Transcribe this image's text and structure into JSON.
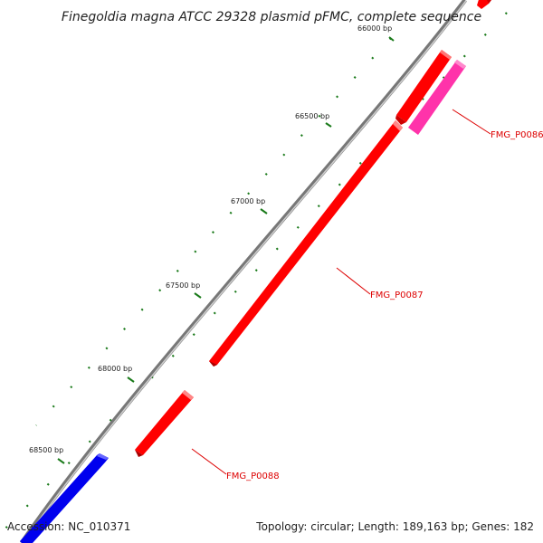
{
  "title": "Finegoldia magna ATCC 29328 plasmid pFMC, complete sequence",
  "footer": {
    "accession": "Accession: NC_010371",
    "summary": "Topology: circular; Length: 189,163 bp; Genes: 182"
  },
  "ticks": [
    {
      "label": "66000 bp"
    },
    {
      "label": "66500 bp"
    },
    {
      "label": "67000 bp"
    },
    {
      "label": "67500 bp"
    },
    {
      "label": "68000 bp"
    },
    {
      "label": "68500 bp"
    }
  ],
  "genes": [
    {
      "label": "FMG_P0086",
      "color": "#ff33aa"
    },
    {
      "label": "FMG_P0087",
      "color": "#ff0000"
    },
    {
      "label": "FMG_P0088",
      "color": "#ff0000"
    }
  ],
  "colors": {
    "backbone": "#888888",
    "forward_gene": "#ff0000",
    "reverse_gene": "#0000ee",
    "rna_gene": "#ff33aa",
    "gc_marks": "#1a7a1a",
    "label": "#dd0000"
  }
}
